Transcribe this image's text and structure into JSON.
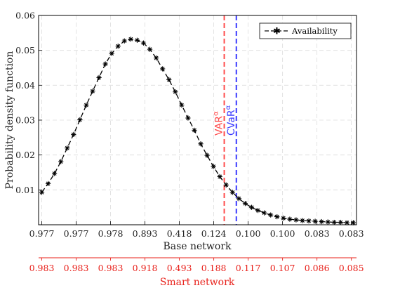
{
  "chart_data": {
    "type": "line",
    "xlabel": "Base network",
    "x2label": "Smart network",
    "ylabel": "Probability density function",
    "ylim": [
      0,
      0.06
    ],
    "yticks": [
      0.01,
      0.02,
      0.03,
      0.04,
      0.05,
      0.06
    ],
    "ytick_labels": [
      "0.01",
      "0.02",
      "0.03",
      "0.04",
      "0.05",
      "0.06"
    ],
    "xticks_base": [
      "0.977",
      "0.977",
      "0.978",
      "0.893",
      "0.418",
      "0.124",
      "0.100",
      "0.100",
      "0.083",
      "0.083"
    ],
    "xticks_smart": [
      "0.983",
      "0.983",
      "0.983",
      "0.918",
      "0.493",
      "0.188",
      "0.117",
      "0.107",
      "0.086",
      "0.085"
    ],
    "grid": true,
    "legend_position": "top-right",
    "colors": {
      "series": "#000000",
      "var": "#ff4d4d",
      "cvar": "#3b3bff",
      "smart_axis": "#e8201a"
    },
    "series": [
      {
        "name": "Availability",
        "style": "dashed-line-with-asterisk-markers",
        "x": [
          1,
          2,
          3,
          4,
          5,
          6,
          7,
          8,
          9,
          10,
          11,
          12,
          13,
          14,
          15,
          16,
          17,
          18,
          19,
          20,
          21,
          22,
          23,
          24,
          25,
          26,
          27,
          28,
          29,
          30,
          31,
          32,
          33,
          34,
          35,
          36,
          37,
          38,
          39,
          40,
          41,
          42,
          43,
          44,
          45,
          46,
          47,
          48,
          49,
          50
        ],
        "values": [
          0.0093,
          0.0118,
          0.0147,
          0.0181,
          0.022,
          0.0259,
          0.0301,
          0.0343,
          0.0383,
          0.0422,
          0.0461,
          0.0491,
          0.0512,
          0.0527,
          0.0532,
          0.0529,
          0.0521,
          0.0503,
          0.0478,
          0.0447,
          0.0416,
          0.0381,
          0.0343,
          0.0306,
          0.0271,
          0.0232,
          0.0199,
          0.0167,
          0.0138,
          0.0114,
          0.0093,
          0.0075,
          0.0061,
          0.005,
          0.0041,
          0.0034,
          0.0028,
          0.0023,
          0.0019,
          0.0016,
          0.0014,
          0.0012,
          0.0011,
          0.001,
          0.0009,
          0.0008,
          0.0007,
          0.0007,
          0.0006,
          0.0006
        ]
      }
    ],
    "annotations": [
      {
        "label": "VAR",
        "subscript": "α",
        "x": 29.7,
        "color": "#ff4d4d"
      },
      {
        "label": "CVaR",
        "subscript": "α",
        "x": 31.6,
        "color": "#3b3bff"
      }
    ]
  }
}
